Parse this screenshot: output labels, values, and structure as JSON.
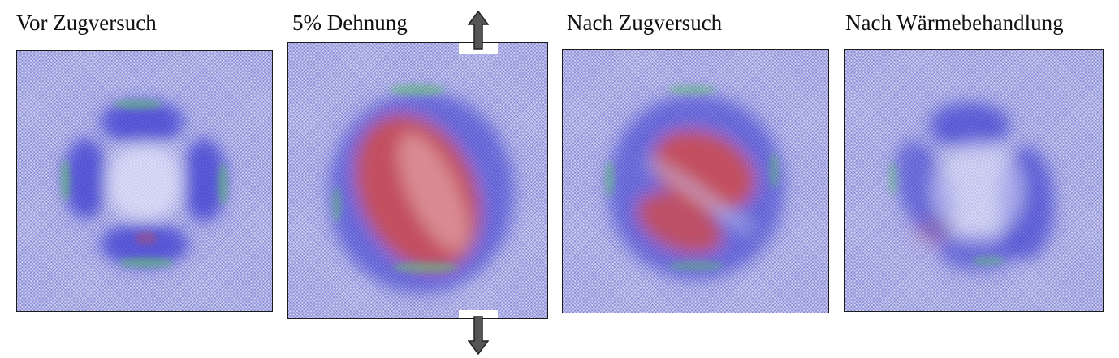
{
  "panels": [
    {
      "label": "Vor Zugversuch",
      "state": "before-tensile-test"
    },
    {
      "label": "5% Dehnung",
      "state": "5-percent-strain"
    },
    {
      "label": "Nach Zugversuch",
      "state": "after-tensile-test"
    },
    {
      "label": "Nach Wärmebehandlung",
      "state": "after-heat-treatment"
    }
  ],
  "colors": {
    "matrix": "#c9cbee",
    "lattice": "#4646be",
    "defect_blue": "#3a3ad0",
    "strained_red": "#d24a4a",
    "interface_green": "#5cc86a"
  },
  "icons": {
    "load_arrow_up": "arrow-up-icon",
    "load_arrow_down": "arrow-down-icon"
  }
}
